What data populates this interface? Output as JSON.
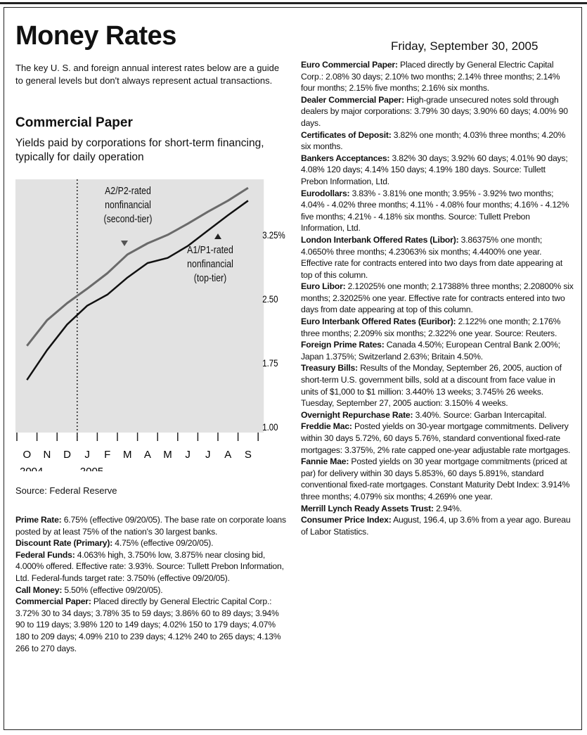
{
  "header": {
    "title": "Money Rates",
    "date": "Friday, September 30, 2005",
    "intro": "The key U. S. and foreign annual interest rates below are a guide to general levels but don't always represent actual transactions."
  },
  "section": {
    "title": "Commercial Paper",
    "subtitle": "Yields paid by corporations for short-term financing, typically for daily operation",
    "source": "Source: Federal Reserve"
  },
  "chart_data": {
    "type": "line",
    "categories": [
      "O",
      "N",
      "D",
      "J",
      "F",
      "M",
      "A",
      "M",
      "J",
      "J",
      "A",
      "S"
    ],
    "year_labels": [
      "2004",
      "2005"
    ],
    "series": [
      {
        "name": "A2/P2-rated nonfinancial (second-tier)",
        "color": "#6a6a6a",
        "values": [
          1.95,
          2.25,
          2.45,
          2.62,
          2.8,
          3.02,
          3.15,
          3.25,
          3.38,
          3.52,
          3.65,
          3.8
        ]
      },
      {
        "name": "A1/P1-rated nonfinancial (top-tier)",
        "color": "#111111",
        "values": [
          1.55,
          1.9,
          2.2,
          2.42,
          2.55,
          2.75,
          2.92,
          2.98,
          3.12,
          3.3,
          3.48,
          3.65
        ]
      }
    ],
    "ylim": [
      1.0,
      3.9
    ],
    "yticks": [
      {
        "value": 1.0,
        "label": "1.00"
      },
      1.75,
      {
        "value": 2.5,
        "label": "2.50"
      },
      {
        "value": 3.25,
        "label": "3.25%"
      }
    ]
  },
  "left_items": [
    {
      "label": "Prime Rate:",
      "text": "6.75% (effective 09/20/05). The base rate on corporate loans posted by at least 75% of the nation's 30 largest banks."
    },
    {
      "label": "Discount Rate (Primary):",
      "text": "4.75% (effective 09/20/05)."
    },
    {
      "label": "Federal Funds:",
      "text": "4.063% high, 3.750% low, 3.875% near closing bid, 4.000% offered. Effective rate: 3.93%. Source: Tullett Prebon Information, Ltd. Federal-funds target rate: 3.750% (effective 09/20/05)."
    },
    {
      "label": "Call Money:",
      "text": "5.50% (effective 09/20/05)."
    },
    {
      "label": "Commercial Paper:",
      "text": "Placed directly by General Electric Capital Corp.: 3.72% 30 to 34 days; 3.78% 35 to 59 days; 3.86% 60 to 89 days; 3.94% 90 to 119 days; 3.98% 120 to 149 days; 4.02% 150 to 179 days; 4.07% 180 to 209 days; 4.09% 210 to 239 days; 4.12% 240 to 265 days; 4.13% 266 to 270 days."
    }
  ],
  "right_items": [
    {
      "label": "Euro Commercial Paper:",
      "text": "Placed directly by General Electric Capital Corp.: 2.08% 30 days; 2.10% two months; 2.14% three months; 2.14% four months; 2.15% five months; 2.16% six months."
    },
    {
      "label": "Dealer Commercial Paper:",
      "text": "High-grade unsecured notes sold through dealers by major corporations: 3.79% 30 days; 3.90% 60 days; 4.00% 90 days."
    },
    {
      "label": "Certificates of Deposit:",
      "text": "3.82% one month; 4.03% three months; 4.20% six months."
    },
    {
      "label": "Bankers Acceptances:",
      "text": "3.82% 30 days; 3.92% 60 days; 4.01% 90 days; 4.08% 120 days; 4.14% 150 days; 4.19% 180 days. Source: Tullett Prebon Information, Ltd."
    },
    {
      "label": "Eurodollars:",
      "text": "3.83% - 3.81% one month; 3.95% - 3.92% two months; 4.04% - 4.02% three months; 4.11% - 4.08% four months; 4.16% - 4.12% five months; 4.21% - 4.18% six months. Source: Tullett Prebon Information, Ltd."
    },
    {
      "label": "London Interbank Offered Rates (Libor):",
      "text": "3.86375% one month; 4.0650% three months; 4.23063% six months; 4.4400% one year. Effective rate for contracts entered into two days from date appearing at top of this column."
    },
    {
      "label": "Euro Libor:",
      "text": "2.12025% one month; 2.17388% three months; 2.20800% six months; 2.32025% one year. Effective rate for contracts entered into two days from date appearing at top of this column."
    },
    {
      "label": "Euro Interbank Offered Rates (Euribor):",
      "text": "2.122% one month; 2.176% three months; 2.209% six months; 2.322% one year. Source: Reuters."
    },
    {
      "label": "Foreign Prime Rates:",
      "text": "Canada 4.50%; European Central Bank 2.00%; Japan 1.375%; Switzerland 2.63%; Britain 4.50%."
    },
    {
      "label": "Treasury Bills:",
      "text": "Results of the Monday, September 26, 2005, auction of short-term U.S. government bills, sold at a discount from face value in units of $1,000 to $1 million: 3.440% 13 weeks; 3.745% 26 weeks. Tuesday, September 27, 2005 auction: 3.150% 4 weeks."
    },
    {
      "label": "Overnight Repurchase Rate:",
      "text": "3.40%. Source: Garban Intercapital."
    },
    {
      "label": "Freddie Mac:",
      "text": "Posted yields on 30-year mortgage commitments. Delivery within 30 days 5.72%, 60 days 5.76%, standard conventional fixed-rate mortgages: 3.375%, 2% rate capped one-year adjustable rate mortgages."
    },
    {
      "label": "Fannie Mae:",
      "text": "Posted yields on 30 year mortgage commitments (priced at par) for delivery within 30 days 5.853%, 60 days 5.891%, standard conventional fixed-rate mortgages. Constant Maturity Debt Index: 3.914% three months; 4.079% six months; 4.269% one year."
    },
    {
      "label": "Merrill Lynch Ready Assets Trust:",
      "text": "2.94%."
    },
    {
      "label": "Consumer Price Index:",
      "text": "August, 196.4, up 3.6% from a year ago. Bureau of Labor Statistics."
    }
  ]
}
